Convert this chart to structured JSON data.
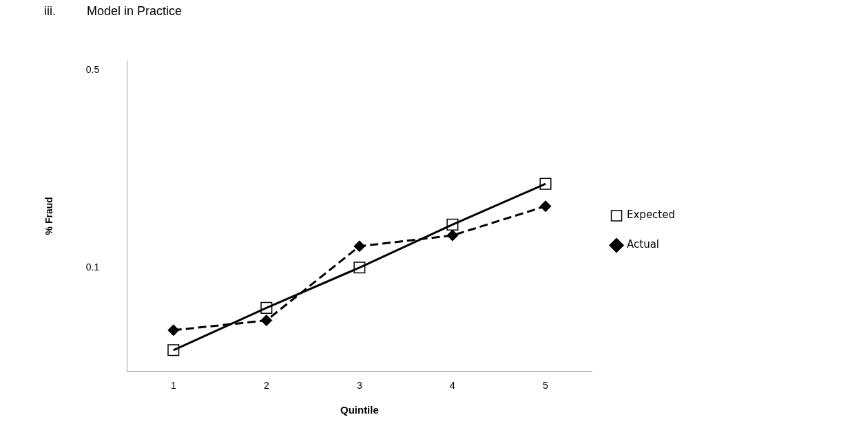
{
  "chart_data": {
    "type": "line",
    "title": "iii.         Model in Practice",
    "xlabel": "Quintile",
    "ylabel": "% Fraud",
    "categories": [
      "1",
      "2",
      "3",
      "4",
      "5"
    ],
    "series": [
      {
        "name": "Expected",
        "color": "#000000",
        "values": [
          0.051,
          0.072,
          0.1,
          0.142,
          0.198
        ],
        "marker": "square",
        "line_style": "solid"
      },
      {
        "name": "Actual",
        "color": "#000000",
        "values": [
          0.06,
          0.065,
          0.119,
          0.13,
          0.165
        ],
        "marker": "diamond",
        "line_style": "dashed"
      }
    ],
    "log": "y",
    "ylim": [
      0.043,
      0.54
    ],
    "yticks": [
      0.1,
      0.5
    ],
    "grid": false,
    "legend": "right"
  }
}
